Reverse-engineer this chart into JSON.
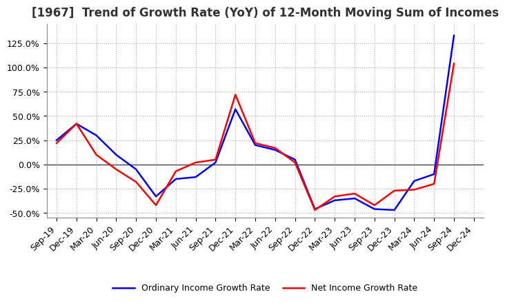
{
  "title": "[1967]  Trend of Growth Rate (YoY) of 12-Month Moving Sum of Incomes",
  "x_labels": [
    "Sep-19",
    "Dec-19",
    "Mar-20",
    "Jun-20",
    "Sep-20",
    "Dec-20",
    "Mar-21",
    "Jun-21",
    "Sep-21",
    "Dec-21",
    "Mar-22",
    "Jun-22",
    "Sep-22",
    "Dec-22",
    "Mar-23",
    "Jun-23",
    "Sep-23",
    "Dec-23",
    "Mar-24",
    "Jun-24",
    "Sep-24",
    "Dec-24"
  ],
  "ordinary_income": [
    0.25,
    0.42,
    0.3,
    0.1,
    -0.05,
    -0.33,
    -0.15,
    -0.13,
    0.02,
    0.57,
    0.2,
    0.15,
    0.05,
    -0.46,
    -0.37,
    -0.35,
    -0.46,
    -0.47,
    -0.17,
    -0.1,
    1.33,
    null
  ],
  "net_income": [
    0.22,
    0.42,
    0.1,
    -0.05,
    -0.18,
    -0.42,
    -0.07,
    0.02,
    0.05,
    0.72,
    0.22,
    0.17,
    0.02,
    -0.47,
    -0.33,
    -0.3,
    -0.42,
    -0.27,
    -0.26,
    -0.2,
    1.04,
    null
  ],
  "ordinary_color": "#0000ff",
  "net_color": "#ff0000",
  "ylim": [
    -0.55,
    1.45
  ],
  "yticks": [
    -0.5,
    -0.25,
    0.0,
    0.25,
    0.5,
    0.75,
    1.0,
    1.25
  ],
  "background_color": "#ffffff",
  "grid_color": "#aaaaaa",
  "legend_ordinary": "Ordinary Income Growth Rate",
  "legend_net": "Net Income Growth Rate",
  "title_fontsize": 12,
  "tick_fontsize": 9,
  "legend_fontsize": 9
}
